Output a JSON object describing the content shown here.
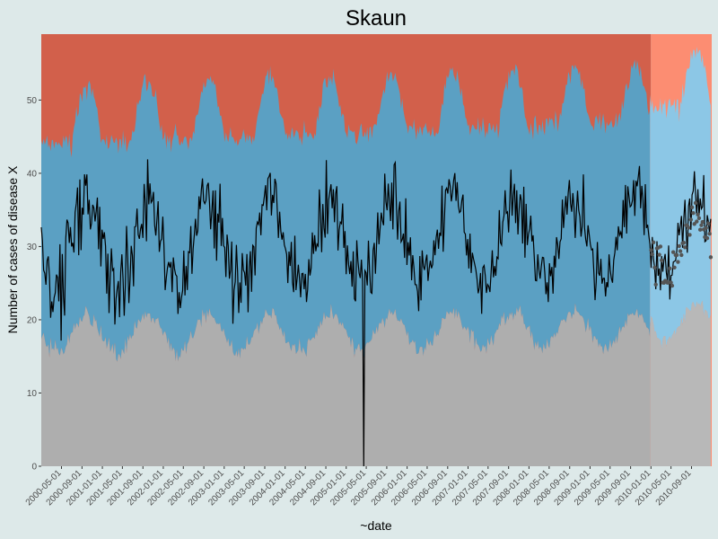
{
  "chart_data": {
    "type": "area",
    "title": "Skaun",
    "xlabel": "~date",
    "ylabel": "Number of cases of disease X",
    "ylim": [
      0,
      59
    ],
    "yticks": [
      0,
      10,
      20,
      30,
      40,
      50
    ],
    "x_start": "2000-01-01",
    "x_end": "2010-12-31",
    "forecast_start": "2010-01-01",
    "xticks": [
      "2000-05-01",
      "2000-09-01",
      "2001-01-01",
      "2001-05-01",
      "2001-09-01",
      "2002-01-01",
      "2002-05-01",
      "2002-09-01",
      "2003-01-01",
      "2003-05-01",
      "2003-09-01",
      "2004-01-01",
      "2004-05-01",
      "2004-09-01",
      "2005-01-01",
      "2005-05-01",
      "2005-09-01",
      "2006-01-01",
      "2006-05-01",
      "2006-09-01",
      "2007-01-01",
      "2007-05-01",
      "2007-09-01",
      "2008-01-01",
      "2008-05-01",
      "2008-09-01",
      "2009-01-01",
      "2009-05-01",
      "2009-09-01",
      "2010-01-01",
      "2010-05-01",
      "2010-09-01"
    ],
    "baseline_mean": 30,
    "seasonal_amplitude": 6,
    "seasonal_peak_month": 9,
    "baseline_threshold_low": 18,
    "baseline_threshold_high": 42,
    "outlier": {
      "date": "2005-04-15",
      "value": 0
    },
    "colors": {
      "normal_band_fill": "#aeaeae",
      "expected_band_fill": "#5ba0c3",
      "alert_band_fill": "#d2604b",
      "forecast_normal_fill": "#b8b8b8",
      "forecast_expected_fill": "#8cc7e6",
      "forecast_alert_fill": "#fc8d72",
      "observed_line": "#000000",
      "forecast_points": "#555555",
      "plot_background": "#ebebeb",
      "page_background": "#dde9e9"
    }
  }
}
